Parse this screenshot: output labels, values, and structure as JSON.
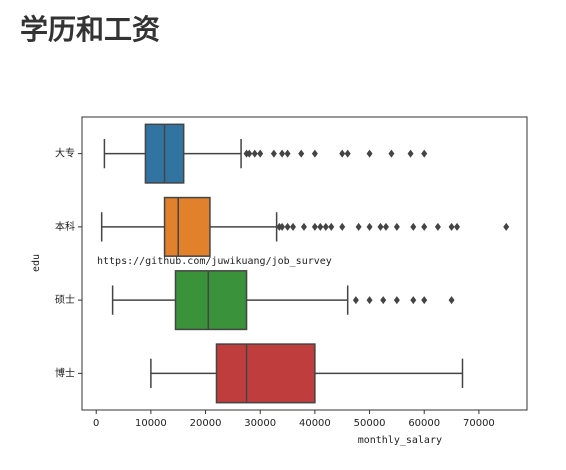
{
  "heading": "学历和工资",
  "chart_data": {
    "type": "box",
    "xlabel": "monthly_salary",
    "ylabel": "edu",
    "annotation": "https://github.com/juwikuang/job_survey",
    "categories": [
      "大专",
      "本科",
      "硕士",
      "博士"
    ],
    "xlim": [
      -2600,
      78800
    ],
    "xticks": [
      0,
      10000,
      20000,
      30000,
      40000,
      50000,
      60000,
      70000
    ],
    "boxes": [
      {
        "color": "#3274a1",
        "low": 1500,
        "q1": 9000,
        "median": 12500,
        "q3": 16000,
        "high": 26500,
        "outliers": [
          27500,
          28000,
          29000,
          30000,
          32500,
          34000,
          35000,
          37500,
          40000,
          45000,
          46000,
          50000,
          54000,
          57500,
          60000
        ]
      },
      {
        "color": "#e1812c",
        "low": 1000,
        "q1": 12500,
        "median": 15000,
        "q3": 20800,
        "high": 33000,
        "outliers": [
          33500,
          34000,
          35000,
          36000,
          38000,
          40000,
          41000,
          42000,
          43000,
          45000,
          48000,
          50000,
          52000,
          53000,
          55000,
          58000,
          60000,
          62500,
          65000,
          66000,
          75000
        ]
      },
      {
        "color": "#3a923a",
        "low": 3000,
        "q1": 14500,
        "median": 20500,
        "q3": 27500,
        "high": 46000,
        "outliers": [
          47500,
          50000,
          52500,
          55000,
          58000,
          60000,
          65000
        ]
      },
      {
        "color": "#c03d3e",
        "low": 10000,
        "q1": 22000,
        "median": 27500,
        "q3": 40000,
        "high": 67000,
        "outliers": []
      }
    ]
  }
}
